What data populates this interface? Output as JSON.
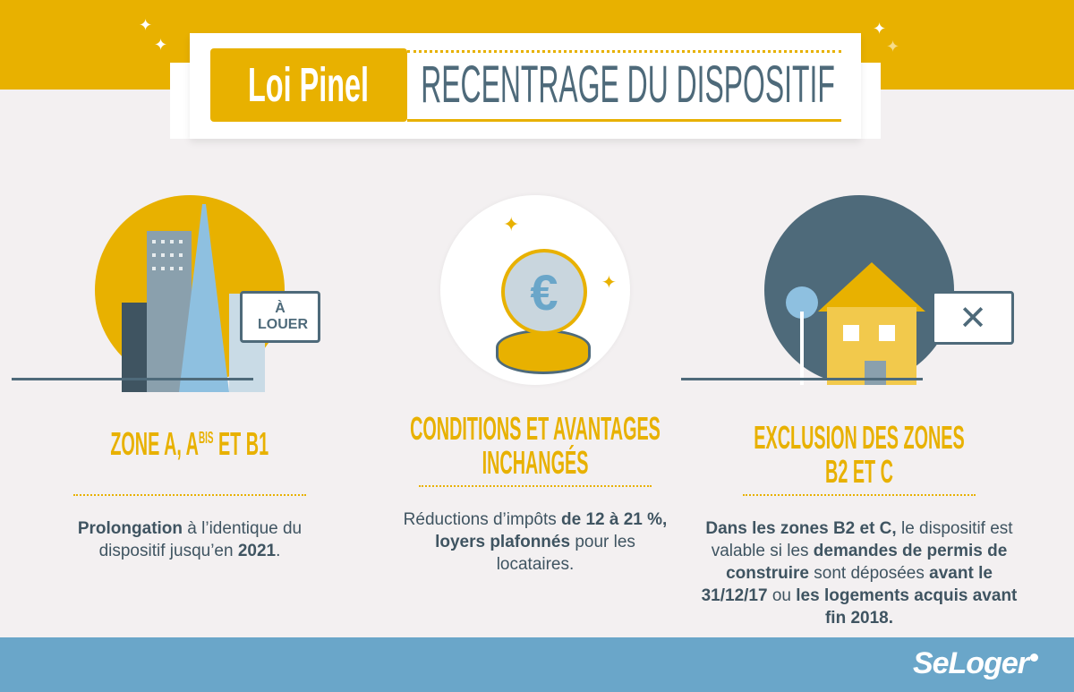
{
  "banner": {
    "label": "Loi Pinel",
    "title": "RECENTRAGE DU DISPOSITIF"
  },
  "columns": [
    {
      "heading": "ZONE A, A",
      "heading_sup": "BIS",
      "heading_end": " ET B1",
      "sign": "À LOUER",
      "segments": [
        {
          "t": "Prolongation",
          "b": true
        },
        {
          "t": " à l’identique du dispositif jusqu’en ",
          "b": false
        },
        {
          "t": "2021",
          "b": true
        },
        {
          "t": ".",
          "b": false
        }
      ]
    },
    {
      "heading": "CONDITIONS ET AVANTAGES INCHANGÉS",
      "coin_symbol": "€",
      "segments": [
        {
          "t": "Réductions d’impôts ",
          "b": false
        },
        {
          "t": "de 12 à 21 %, loyers plafonnés",
          "b": true
        },
        {
          "t": " pour les locataires.",
          "b": false
        }
      ]
    },
    {
      "heading": "EXCLUSION DES ZONES B2 ET C",
      "sign": "✕",
      "segments": [
        {
          "t": "Dans les zones B2 et C,",
          "b": true
        },
        {
          "t": " le dispositif est valable si les ",
          "b": false
        },
        {
          "t": "demandes de permis de construire",
          "b": true
        },
        {
          "t": " sont déposées ",
          "b": false
        },
        {
          "t": "avant le 31/12/17",
          "b": true
        },
        {
          "t": " ou ",
          "b": false
        },
        {
          "t": "les logements acquis avant fin 2018.",
          "b": true
        }
      ]
    }
  ],
  "footer": {
    "logo": "SeLoger"
  },
  "colors": {
    "yellow": "#e8b100",
    "blue": "#6aa6c9",
    "slate": "#4e6a7a"
  }
}
